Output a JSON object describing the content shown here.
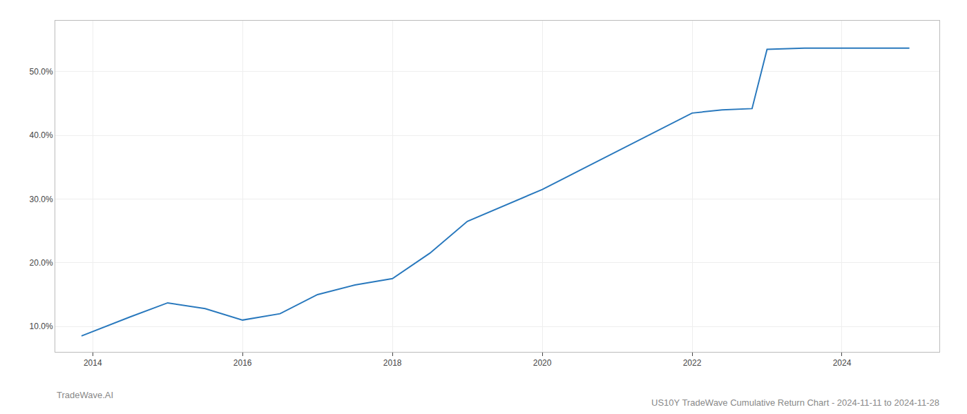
{
  "chart_data": {
    "type": "line",
    "title": "US10Y TradeWave Cumulative Return Chart - 2024-11-11 to 2024-11-28",
    "annotations": [
      "TradeWave.AI"
    ],
    "x": [
      2013.85,
      2014.5,
      2015.0,
      2015.5,
      2016.0,
      2016.5,
      2017.0,
      2017.5,
      2018.0,
      2018.5,
      2019.0,
      2019.5,
      2020.0,
      2020.5,
      2021.0,
      2021.5,
      2022.0,
      2022.4,
      2022.8,
      2023.0,
      2023.5,
      2024.0,
      2024.5,
      2024.9
    ],
    "values": [
      8.5,
      11.5,
      13.7,
      12.8,
      11.0,
      12.0,
      15.0,
      16.5,
      17.5,
      21.5,
      26.5,
      29.0,
      31.5,
      34.5,
      37.5,
      40.5,
      43.5,
      44.0,
      44.2,
      53.5,
      53.7,
      53.7,
      53.7,
      53.7
    ],
    "color": "#2878bd",
    "xlim": [
      2013.5,
      2025.3
    ],
    "ylim": [
      6.0,
      58.0
    ],
    "xticks": [
      2014,
      2016,
      2018,
      2020,
      2022,
      2024
    ],
    "yticks": [
      {
        "value": 10.0,
        "label": "10.0%"
      },
      {
        "value": 20.0,
        "label": "20.0%"
      },
      {
        "value": 30.0,
        "label": "30.0%"
      },
      {
        "value": 40.0,
        "label": "40.0%"
      },
      {
        "value": 50.0,
        "label": "50.0%"
      }
    ],
    "grid": true
  }
}
